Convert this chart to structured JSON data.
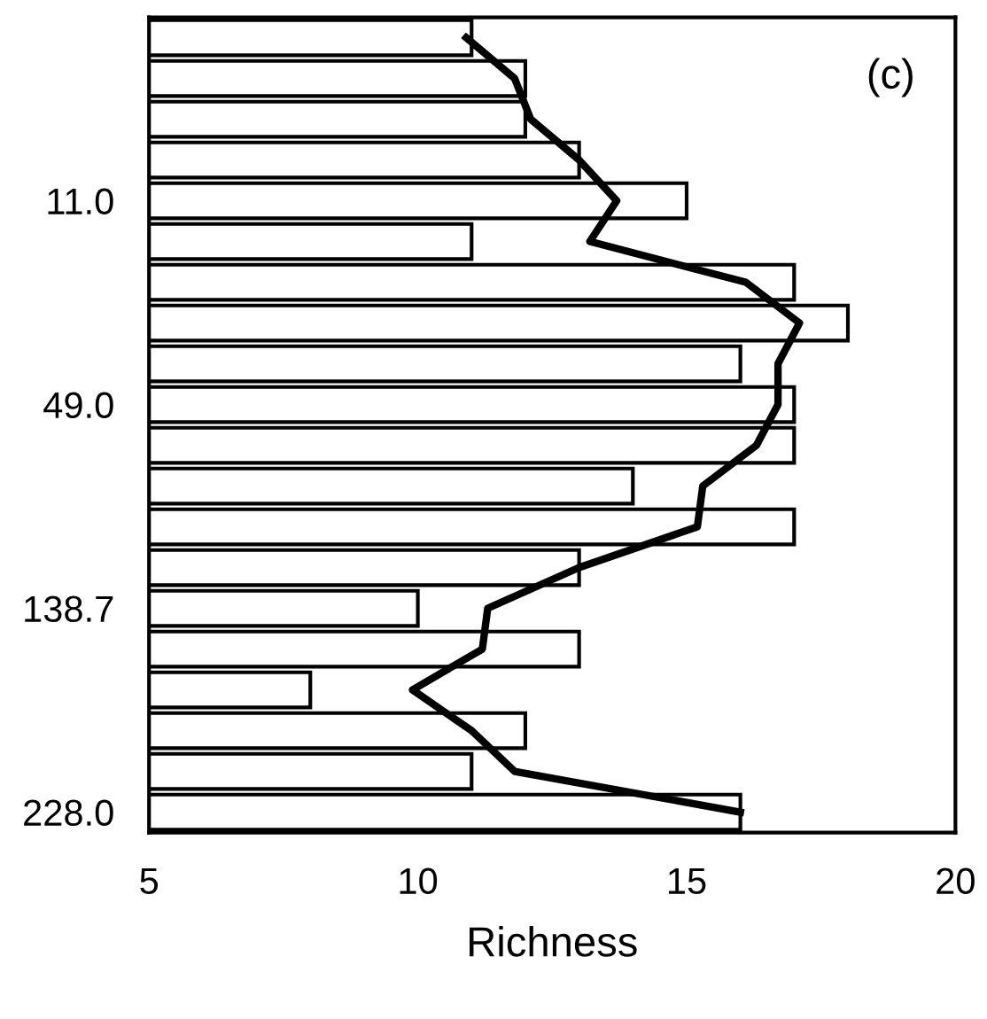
{
  "chart_data": {
    "type": "bar",
    "orientation": "horizontal",
    "xlabel": "Richness",
    "categories": [
      null,
      null,
      null,
      null,
      "11.0",
      null,
      null,
      null,
      null,
      "49.0",
      null,
      null,
      null,
      null,
      "138.7",
      null,
      null,
      null,
      null,
      "228.0"
    ],
    "series": [
      {
        "color": "#ffffff",
        "values": [
          11,
          12,
          12,
          13,
          15,
          11,
          17,
          18,
          16,
          17,
          17,
          14,
          17,
          13,
          10,
          13,
          8,
          12,
          11,
          16
        ]
      },
      {
        "type": "line",
        "color": "#000000",
        "values": [
          10.9,
          11.8,
          12.1,
          13.0,
          13.7,
          13.2,
          16.1,
          17.1,
          16.7,
          16.7,
          16.3,
          15.3,
          15.2,
          13.0,
          11.3,
          11.2,
          9.9,
          11.0,
          11.8,
          16.0
        ]
      }
    ],
    "xlim": [
      5,
      20
    ],
    "xticks": [
      5,
      10,
      15,
      20
    ],
    "grid": false,
    "legend": false,
    "annotations": [
      "(c)"
    ]
  }
}
